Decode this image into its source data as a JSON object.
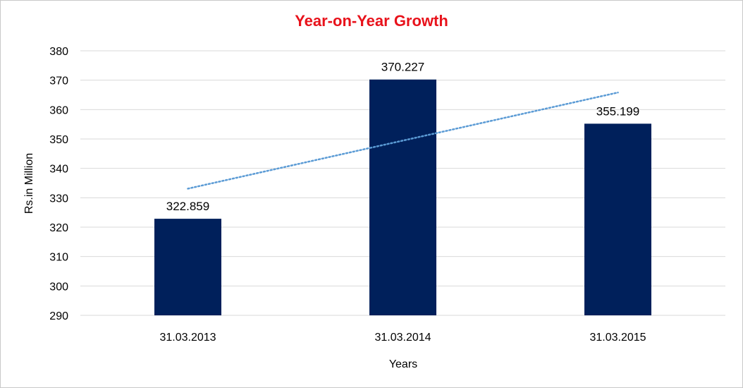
{
  "chart_data": {
    "type": "bar",
    "title": "Year-on-Year Growth",
    "xlabel": "Years",
    "ylabel": "Rs.in Million",
    "categories": [
      "31.03.2013",
      "31.03.2014",
      "31.03.2015"
    ],
    "values": [
      322.859,
      370.227,
      355.199
    ],
    "value_labels": [
      "322.859",
      "370.227",
      "355.199"
    ],
    "ylim": [
      290,
      380
    ],
    "yticks": [
      290,
      300,
      310,
      320,
      330,
      340,
      350,
      360,
      370,
      380
    ],
    "grid": true,
    "legend": "none",
    "trendline": {
      "type": "linear",
      "style": "dotted",
      "start_value": 333.1,
      "end_value": 365.8
    },
    "colors": {
      "bar": "#00205b",
      "trendline": "#5b9bd5",
      "title": "#e8121b",
      "grid": "#d9d9d9"
    }
  }
}
